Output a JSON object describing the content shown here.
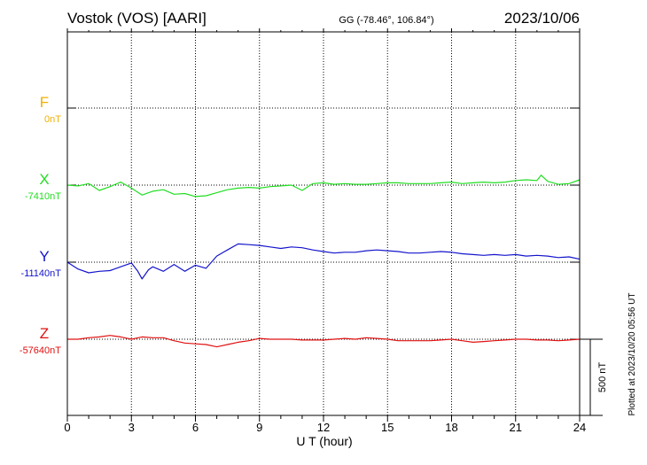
{
  "header": {
    "station": "Vostok (VOS)  [AARI]",
    "coords": "GG (-78.46°, 106.84°)",
    "date": "2023/10/06"
  },
  "side_note": "Plotted at 2023/10/20 05:56 UT",
  "chart_data": {
    "type": "line",
    "xlabel": "U T (hour)",
    "xlim": [
      0,
      24
    ],
    "x_ticks": [
      "0",
      "3",
      "6",
      "9",
      "12",
      "15",
      "18",
      "21",
      "24"
    ],
    "scale_label": "500 nT",
    "scale_nT": 500,
    "series": [
      {
        "name": "F",
        "baseline_label": "0nT",
        "color": "#f0b000",
        "has_data": false,
        "points": []
      },
      {
        "name": "X",
        "baseline_label": "-7410nT",
        "color": "#22dd22",
        "has_data": true,
        "points": [
          [
            0,
            -7410
          ],
          [
            0.5,
            -7415
          ],
          [
            1,
            -7400
          ],
          [
            1.5,
            -7445
          ],
          [
            2,
            -7420
          ],
          [
            2.5,
            -7390
          ],
          [
            3,
            -7430
          ],
          [
            3.5,
            -7475
          ],
          [
            4,
            -7450
          ],
          [
            4.5,
            -7440
          ],
          [
            5,
            -7470
          ],
          [
            5.5,
            -7465
          ],
          [
            6,
            -7485
          ],
          [
            6.5,
            -7480
          ],
          [
            7,
            -7460
          ],
          [
            7.5,
            -7440
          ],
          [
            8,
            -7430
          ],
          [
            8.5,
            -7425
          ],
          [
            9,
            -7430
          ],
          [
            9.5,
            -7420
          ],
          [
            10,
            -7415
          ],
          [
            10.5,
            -7410
          ],
          [
            11,
            -7445
          ],
          [
            11.5,
            -7400
          ],
          [
            12,
            -7395
          ],
          [
            12.5,
            -7405
          ],
          [
            13,
            -7400
          ],
          [
            13.5,
            -7405
          ],
          [
            14,
            -7405
          ],
          [
            14.5,
            -7400
          ],
          [
            15,
            -7395
          ],
          [
            15.5,
            -7395
          ],
          [
            16,
            -7400
          ],
          [
            16.5,
            -7400
          ],
          [
            17,
            -7400
          ],
          [
            17.5,
            -7395
          ],
          [
            18,
            -7390
          ],
          [
            18.5,
            -7400
          ],
          [
            19,
            -7395
          ],
          [
            19.5,
            -7390
          ],
          [
            20,
            -7395
          ],
          [
            20.5,
            -7390
          ],
          [
            21,
            -7380
          ],
          [
            21.5,
            -7375
          ],
          [
            22,
            -7380
          ],
          [
            22.2,
            -7345
          ],
          [
            22.5,
            -7385
          ],
          [
            23,
            -7405
          ],
          [
            23.5,
            -7400
          ],
          [
            24,
            -7375
          ]
        ]
      },
      {
        "name": "Y",
        "baseline_label": "-11140nT",
        "color": "#1414cc",
        "has_data": true,
        "points": [
          [
            0,
            -11140
          ],
          [
            0.5,
            -11185
          ],
          [
            1,
            -11210
          ],
          [
            1.5,
            -11200
          ],
          [
            2,
            -11195
          ],
          [
            2.5,
            -11170
          ],
          [
            3,
            -11145
          ],
          [
            3.3,
            -11200
          ],
          [
            3.5,
            -11250
          ],
          [
            3.8,
            -11190
          ],
          [
            4,
            -11170
          ],
          [
            4.5,
            -11200
          ],
          [
            5,
            -11155
          ],
          [
            5.5,
            -11200
          ],
          [
            6,
            -11160
          ],
          [
            6.5,
            -11180
          ],
          [
            7,
            -11100
          ],
          [
            7.5,
            -11060
          ],
          [
            8,
            -11020
          ],
          [
            8.5,
            -11025
          ],
          [
            9,
            -11030
          ],
          [
            9.5,
            -11040
          ],
          [
            10,
            -11050
          ],
          [
            10.5,
            -11040
          ],
          [
            11,
            -11045
          ],
          [
            11.5,
            -11060
          ],
          [
            12,
            -11070
          ],
          [
            12.5,
            -11080
          ],
          [
            13,
            -11075
          ],
          [
            13.5,
            -11075
          ],
          [
            14,
            -11065
          ],
          [
            14.5,
            -11060
          ],
          [
            15,
            -11065
          ],
          [
            15.5,
            -11070
          ],
          [
            16,
            -11080
          ],
          [
            16.5,
            -11080
          ],
          [
            17,
            -11075
          ],
          [
            17.5,
            -11070
          ],
          [
            18,
            -11075
          ],
          [
            18.5,
            -11085
          ],
          [
            19,
            -11090
          ],
          [
            19.5,
            -11095
          ],
          [
            20,
            -11090
          ],
          [
            20.5,
            -11095
          ],
          [
            21,
            -11090
          ],
          [
            21.5,
            -11100
          ],
          [
            22,
            -11095
          ],
          [
            22.5,
            -11100
          ],
          [
            23,
            -11110
          ],
          [
            23.5,
            -11105
          ],
          [
            24,
            -11120
          ]
        ]
      },
      {
        "name": "Z",
        "baseline_label": "-57640nT",
        "color": "#e01010",
        "has_data": true,
        "points": [
          [
            0,
            -57640
          ],
          [
            0.5,
            -57640
          ],
          [
            1,
            -57630
          ],
          [
            1.5,
            -57625
          ],
          [
            2,
            -57615
          ],
          [
            2.5,
            -57625
          ],
          [
            3,
            -57640
          ],
          [
            3.5,
            -57625
          ],
          [
            4,
            -57630
          ],
          [
            4.5,
            -57630
          ],
          [
            5,
            -57650
          ],
          [
            5.5,
            -57665
          ],
          [
            6,
            -57670
          ],
          [
            6.5,
            -57675
          ],
          [
            7,
            -57690
          ],
          [
            7.5,
            -57675
          ],
          [
            8,
            -57660
          ],
          [
            8.5,
            -57650
          ],
          [
            9,
            -57635
          ],
          [
            9.5,
            -57640
          ],
          [
            10,
            -57640
          ],
          [
            10.5,
            -57640
          ],
          [
            11,
            -57645
          ],
          [
            11.5,
            -57645
          ],
          [
            12,
            -57645
          ],
          [
            12.5,
            -57640
          ],
          [
            13,
            -57635
          ],
          [
            13.5,
            -57640
          ],
          [
            14,
            -57630
          ],
          [
            14.5,
            -57635
          ],
          [
            15,
            -57640
          ],
          [
            15.5,
            -57650
          ],
          [
            16,
            -57650
          ],
          [
            16.5,
            -57650
          ],
          [
            17,
            -57650
          ],
          [
            17.5,
            -57645
          ],
          [
            18,
            -57640
          ],
          [
            18.5,
            -57650
          ],
          [
            19,
            -57660
          ],
          [
            19.5,
            -57655
          ],
          [
            20,
            -57650
          ],
          [
            20.5,
            -57645
          ],
          [
            21,
            -57640
          ],
          [
            21.5,
            -57640
          ],
          [
            22,
            -57645
          ],
          [
            22.5,
            -57645
          ],
          [
            23,
            -57650
          ],
          [
            23.5,
            -57645
          ],
          [
            24,
            -57640
          ]
        ]
      }
    ]
  }
}
